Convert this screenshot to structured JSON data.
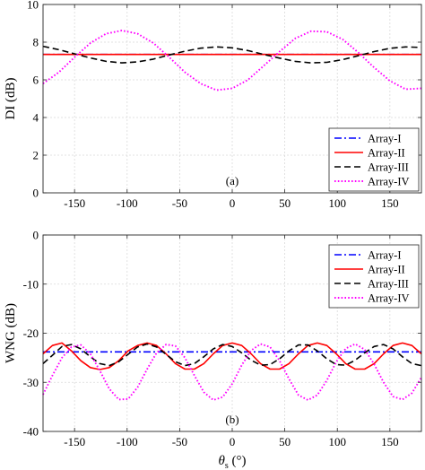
{
  "chart_data": [
    {
      "type": "line",
      "ylabel": "DI (dB)",
      "xlabel": "",
      "panel_label": "(a)",
      "xlim": [
        -180,
        180
      ],
      "ylim": [
        0,
        10
      ],
      "xticks": [
        -150,
        -100,
        -50,
        0,
        50,
        100,
        150
      ],
      "yticks": [
        0,
        2,
        4,
        6,
        8,
        10
      ],
      "grid": true,
      "legend_position": "bottom-right",
      "series": [
        {
          "name": "Array-I",
          "color": "#0000ff",
          "dash": "dash-dot",
          "x": [
            -180,
            180
          ],
          "values": [
            7.35,
            7.35
          ]
        },
        {
          "name": "Array-II",
          "color": "#ff0000",
          "dash": "solid",
          "x": [
            -180,
            180
          ],
          "values": [
            7.35,
            7.35
          ]
        },
        {
          "name": "Array-III",
          "color": "#000000",
          "dash": "dashed",
          "x": [
            -180,
            -165,
            -150,
            -135,
            -120,
            -105,
            -90,
            -75,
            -60,
            -45,
            -30,
            -15,
            0,
            15,
            30,
            45,
            60,
            75,
            90,
            105,
            120,
            135,
            150,
            165,
            180
          ],
          "values": [
            7.78,
            7.6,
            7.38,
            7.16,
            6.98,
            6.9,
            6.95,
            7.1,
            7.32,
            7.52,
            7.68,
            7.75,
            7.7,
            7.55,
            7.35,
            7.15,
            6.98,
            6.9,
            6.93,
            7.07,
            7.28,
            7.5,
            7.67,
            7.75,
            7.72
          ]
        },
        {
          "name": "Array-IV",
          "color": "#ff00ff",
          "dash": "dotted",
          "x": [
            -180,
            -165,
            -150,
            -135,
            -120,
            -105,
            -90,
            -75,
            -60,
            -45,
            -30,
            -15,
            0,
            15,
            30,
            45,
            60,
            75,
            90,
            105,
            120,
            135,
            150,
            165,
            180
          ],
          "values": [
            5.8,
            6.4,
            7.2,
            7.95,
            8.45,
            8.62,
            8.45,
            7.95,
            7.2,
            6.4,
            5.8,
            5.45,
            5.55,
            6.0,
            6.75,
            7.5,
            8.2,
            8.58,
            8.55,
            8.15,
            7.45,
            6.65,
            5.95,
            5.5,
            5.55
          ]
        }
      ]
    },
    {
      "type": "line",
      "ylabel": "WNG (dB)",
      "xlabel": "θs (°)",
      "panel_label": "(b)",
      "xlim": [
        -180,
        180
      ],
      "ylim": [
        -40,
        0
      ],
      "xticks": [
        -150,
        -100,
        -50,
        0,
        50,
        100,
        150
      ],
      "yticks": [
        -40,
        -30,
        -20,
        -10,
        0
      ],
      "grid": true,
      "legend_position": "top-right",
      "series": [
        {
          "name": "Array-I",
          "color": "#0000ff",
          "dash": "dash-dot",
          "x": [
            -180,
            180
          ],
          "values": [
            -23.8,
            -23.8
          ]
        },
        {
          "name": "Array-II",
          "color": "#ff0000",
          "dash": "solid",
          "x": [
            -180,
            -171,
            -162,
            -153,
            -144,
            -135,
            -126,
            -117,
            -108,
            -99,
            -90,
            -81,
            -72,
            -63,
            -54,
            -45,
            -36,
            -27,
            -18,
            -9,
            0,
            9,
            18,
            27,
            36,
            45,
            54,
            63,
            72,
            81,
            90,
            99,
            108,
            117,
            126,
            135,
            144,
            153,
            162,
            171,
            180
          ],
          "values": [
            -24.2,
            -22.5,
            -22.0,
            -23.6,
            -25.6,
            -27.0,
            -27.4,
            -27.0,
            -25.6,
            -23.6,
            -22.5,
            -22.0,
            -22.5,
            -24.2,
            -26.2,
            -27.3,
            -27.3,
            -26.2,
            -24.2,
            -22.5,
            -22.0,
            -22.5,
            -24.2,
            -26.2,
            -27.3,
            -27.3,
            -26.2,
            -24.2,
            -22.5,
            -22.0,
            -22.5,
            -24.2,
            -26.2,
            -27.3,
            -27.3,
            -26.2,
            -24.2,
            -22.5,
            -22.0,
            -22.5,
            -24.2
          ]
        },
        {
          "name": "Array-III",
          "color": "#000000",
          "dash": "dashed",
          "x": [
            -180,
            -171,
            -162,
            -153,
            -144,
            -135,
            -126,
            -117,
            -108,
            -99,
            -90,
            -81,
            -72,
            -63,
            -54,
            -45,
            -36,
            -27,
            -18,
            -9,
            0,
            9,
            18,
            27,
            36,
            45,
            54,
            63,
            72,
            81,
            90,
            99,
            108,
            117,
            126,
            135,
            144,
            153,
            162,
            171,
            180
          ],
          "values": [
            -26.2,
            -24.5,
            -22.7,
            -22.3,
            -23.2,
            -24.8,
            -26.2,
            -26.6,
            -25.8,
            -24.3,
            -22.8,
            -22.2,
            -22.8,
            -24.3,
            -25.8,
            -26.6,
            -26.2,
            -24.8,
            -23.2,
            -22.3,
            -22.7,
            -24.0,
            -25.5,
            -26.5,
            -26.4,
            -25.2,
            -23.6,
            -22.4,
            -22.4,
            -23.6,
            -25.2,
            -26.4,
            -26.5,
            -25.5,
            -24.0,
            -22.7,
            -22.3,
            -23.2,
            -24.8,
            -26.2,
            -26.6
          ]
        },
        {
          "name": "Array-IV",
          "color": "#ff00ff",
          "dash": "dotted",
          "x": [
            -180,
            -171,
            -162,
            -153,
            -144,
            -135,
            -126,
            -117,
            -108,
            -99,
            -90,
            -81,
            -72,
            -63,
            -54,
            -45,
            -36,
            -27,
            -18,
            -9,
            0,
            9,
            18,
            27,
            36,
            45,
            54,
            63,
            72,
            81,
            90,
            99,
            108,
            117,
            126,
            135,
            144,
            153,
            162,
            171,
            180
          ],
          "values": [
            -32.5,
            -28.6,
            -25.0,
            -22.8,
            -22.4,
            -24.2,
            -27.6,
            -31.3,
            -33.5,
            -33.4,
            -31.0,
            -27.3,
            -24.0,
            -22.3,
            -22.6,
            -25.0,
            -28.6,
            -32.0,
            -33.6,
            -33.0,
            -30.3,
            -26.5,
            -23.5,
            -22.2,
            -22.8,
            -25.6,
            -29.3,
            -32.6,
            -33.6,
            -32.6,
            -29.6,
            -25.8,
            -23.1,
            -22.2,
            -23.3,
            -26.3,
            -30.0,
            -32.9,
            -33.5,
            -32.2,
            -29.0
          ]
        }
      ]
    }
  ]
}
